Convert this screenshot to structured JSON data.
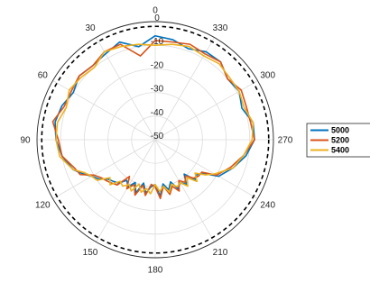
{
  "chart_data": {
    "type": "polar-line",
    "title": "",
    "angular_ticks": [
      "0",
      "30",
      "60",
      "90",
      "120",
      "150",
      "180",
      "210",
      "240",
      "270",
      "300",
      "330"
    ],
    "angular_tick_values": [
      0,
      30,
      60,
      90,
      120,
      150,
      180,
      210,
      240,
      270,
      300,
      330
    ],
    "angular_zero_location": "top",
    "angular_direction": "counterclockwise",
    "radial_ticks": [
      "-50",
      "-40",
      "-30",
      "-20",
      "-10",
      "0"
    ],
    "radial_tick_values": [
      -50,
      -40,
      -30,
      -20,
      -10,
      0
    ],
    "rlim": [
      -50,
      0
    ],
    "radial_tick_label_angle": 0,
    "grid": true,
    "legend_position": "right",
    "reference_circle": {
      "r": -2,
      "style": "dashed",
      "color": "#000000"
    },
    "series": [
      {
        "name": "5000",
        "color": "#0072BD",
        "theta": [
          0,
          10,
          20,
          30,
          40,
          50,
          60,
          70,
          80,
          90,
          100,
          110,
          115,
          120,
          125,
          130,
          135,
          140,
          145,
          150,
          155,
          160,
          165,
          170,
          175,
          180,
          185,
          190,
          195,
          200,
          205,
          210,
          215,
          220,
          225,
          230,
          235,
          240,
          250,
          260,
          270,
          280,
          290,
          300,
          310,
          320,
          330,
          340,
          350,
          360
        ],
        "r": [
          -6,
          -10,
          -6,
          -8,
          -9,
          -8,
          -10,
          -8,
          -7,
          -8,
          -10,
          -13,
          -16,
          -19,
          -21,
          -24,
          -25,
          -26,
          -29,
          -27,
          -30,
          -26,
          -31,
          -27,
          -30,
          -31,
          -26,
          -31,
          -28,
          -31,
          -27,
          -29,
          -27,
          -31,
          -26,
          -27,
          -25,
          -19,
          -15,
          -11,
          -8,
          -8,
          -11,
          -9,
          -10,
          -7,
          -7,
          -9,
          -7,
          -6
        ]
      },
      {
        "name": "5200",
        "color": "#D95319",
        "theta": [
          0,
          10,
          20,
          30,
          40,
          50,
          60,
          70,
          80,
          90,
          100,
          110,
          115,
          120,
          125,
          130,
          135,
          140,
          145,
          150,
          155,
          160,
          165,
          170,
          175,
          180,
          185,
          190,
          195,
          200,
          205,
          210,
          215,
          220,
          225,
          230,
          235,
          240,
          250,
          260,
          270,
          280,
          290,
          300,
          310,
          320,
          330,
          340,
          350,
          360
        ],
        "r": [
          -8,
          -14,
          -7,
          -7,
          -9,
          -8,
          -9,
          -9,
          -6,
          -9,
          -10,
          -14,
          -15,
          -20,
          -22,
          -23,
          -24,
          -25,
          -31,
          -26,
          -29,
          -25,
          -30,
          -26,
          -31,
          -30,
          -25,
          -30,
          -26,
          -29,
          -26,
          -30,
          -28,
          -30,
          -27,
          -26,
          -26,
          -20,
          -16,
          -12,
          -8,
          -9,
          -9,
          -8,
          -10,
          -7,
          -8,
          -7,
          -8,
          -8
        ]
      },
      {
        "name": "5400",
        "color": "#EDB120",
        "theta": [
          0,
          10,
          20,
          30,
          40,
          50,
          60,
          70,
          80,
          90,
          100,
          110,
          115,
          120,
          125,
          130,
          135,
          140,
          145,
          150,
          155,
          160,
          165,
          170,
          175,
          180,
          185,
          190,
          195,
          200,
          205,
          210,
          215,
          220,
          225,
          230,
          235,
          240,
          250,
          260,
          270,
          280,
          290,
          300,
          310,
          320,
          330,
          340,
          350,
          360
        ],
        "r": [
          -10,
          -9,
          -8,
          -7,
          -10,
          -9,
          -8,
          -10,
          -8,
          -8,
          -9,
          -13,
          -17,
          -19,
          -20,
          -25,
          -23,
          -27,
          -26,
          -28,
          -26,
          -30,
          -27,
          -29,
          -27,
          -31,
          -28,
          -30,
          -27,
          -30,
          -28,
          -29,
          -26,
          -29,
          -25,
          -28,
          -24,
          -21,
          -15,
          -12,
          -9,
          -8,
          -10,
          -9,
          -9,
          -8,
          -9,
          -8,
          -9,
          -10
        ]
      }
    ]
  }
}
